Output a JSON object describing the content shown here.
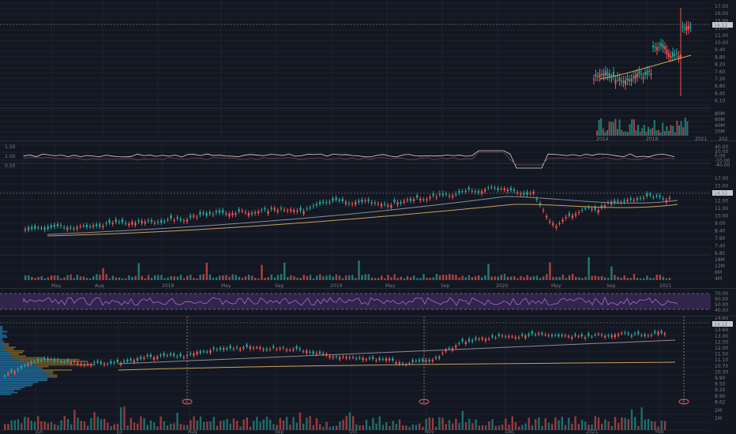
{
  "colors": {
    "background": "#131722",
    "grid": "#1e222d",
    "up": "#26a69a",
    "down": "#ef5350",
    "ma_orange": "#c9a15a",
    "ma_gray": "#8a8d97",
    "rsi_band": "#3a2a55",
    "rsi_line": "#9c74c9",
    "profile_blue": "#1f6f9e",
    "profile_orange": "#8a6a2a",
    "price_tag": "#c7c9cf"
  },
  "pane1": {
    "price_axis": [
      "17.00",
      "16.00",
      "15.00",
      "13.00",
      "11.00",
      "10.00",
      "9.40",
      "8.80",
      "8.20",
      "7.60",
      "7.20",
      "6.80",
      "6.45",
      "6.10"
    ],
    "volume_axis": [
      "80M",
      "60M",
      "40M",
      "20M"
    ],
    "x_labels": [
      "2014",
      "2018",
      "2021",
      "202"
    ],
    "price_tag": "14.12"
  },
  "pane2": {
    "osc_left_axis": [
      "1.50",
      "1.00",
      "0.50"
    ],
    "osc_right_axis": [
      "40.00",
      "20.00",
      "0.00",
      "-20.00",
      "-40.00"
    ],
    "price_axis": [
      "17.00",
      "15.00",
      "13.00",
      "12.00",
      "11.00",
      "10.00",
      "9.00",
      "8.40",
      "7.90",
      "7.40",
      "6.85"
    ],
    "volume_axis": [
      "18M",
      "12M",
      "6M",
      "4M"
    ],
    "price_tag": "14.12",
    "x_labels": [
      "May",
      "Aug",
      "2018",
      "May",
      "Sep",
      "2019",
      "May",
      "Sep",
      "2020",
      "May",
      "Sep",
      "2021"
    ]
  },
  "rsi": {
    "axis": [
      "70.00",
      "60.00",
      "50.00",
      "40.00"
    ]
  },
  "pane3": {
    "price_axis": [
      "14.60",
      "14.12",
      "13.60",
      "13.00",
      "12.50",
      "12.00",
      "11.50",
      "11.10",
      "10.70",
      "10.30",
      "9.90",
      "9.50",
      "9.20",
      "8.90",
      "8.62"
    ],
    "volume_axis": [
      "2M",
      "1M"
    ],
    "x_labels": [
      "Jun",
      "Jul",
      "Aug",
      "Sep",
      "Oct",
      "Nov",
      "Dec",
      "2021",
      "Feb"
    ],
    "earnings_markers": [
      "E",
      "E",
      "E"
    ],
    "price_tag": "14.12"
  }
}
